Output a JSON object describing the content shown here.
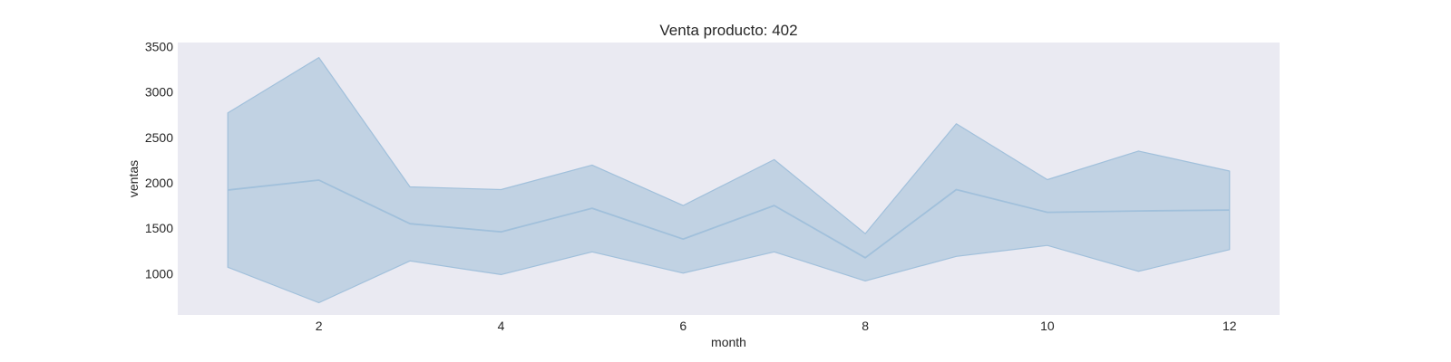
{
  "chart_data": {
    "type": "line",
    "title": "Venta producto: 402",
    "xlabel": "month",
    "ylabel": "ventas",
    "x": [
      1,
      2,
      3,
      4,
      5,
      6,
      7,
      8,
      9,
      10,
      11,
      12
    ],
    "series": [
      {
        "values": [
          1920,
          2030,
          1550,
          1460,
          1720,
          1380,
          1750,
          1175,
          1925,
          1675,
          1690,
          1700
        ],
        "lower": [
          1070,
          680,
          1140,
          990,
          1240,
          1005,
          1240,
          920,
          1190,
          1310,
          1025,
          1265
        ],
        "upper": [
          2770,
          3380,
          1955,
          1925,
          2195,
          1750,
          2255,
          1440,
          2650,
          2035,
          2350,
          2130
        ],
        "color": "#a1c0db"
      }
    ],
    "xlim": [
      0.45,
      12.55
    ],
    "ylim": [
      545,
      3545
    ],
    "xticks": [
      2,
      4,
      6,
      8,
      10,
      12
    ],
    "yticks": [
      1000,
      1500,
      2000,
      2500,
      3000,
      3500
    ],
    "grid": false,
    "legend": "none",
    "colors": {
      "plot_background": "#eaeaf2",
      "line": "#a1c0db",
      "band_fill": "#c1d2e3",
      "text": "#262626"
    }
  }
}
